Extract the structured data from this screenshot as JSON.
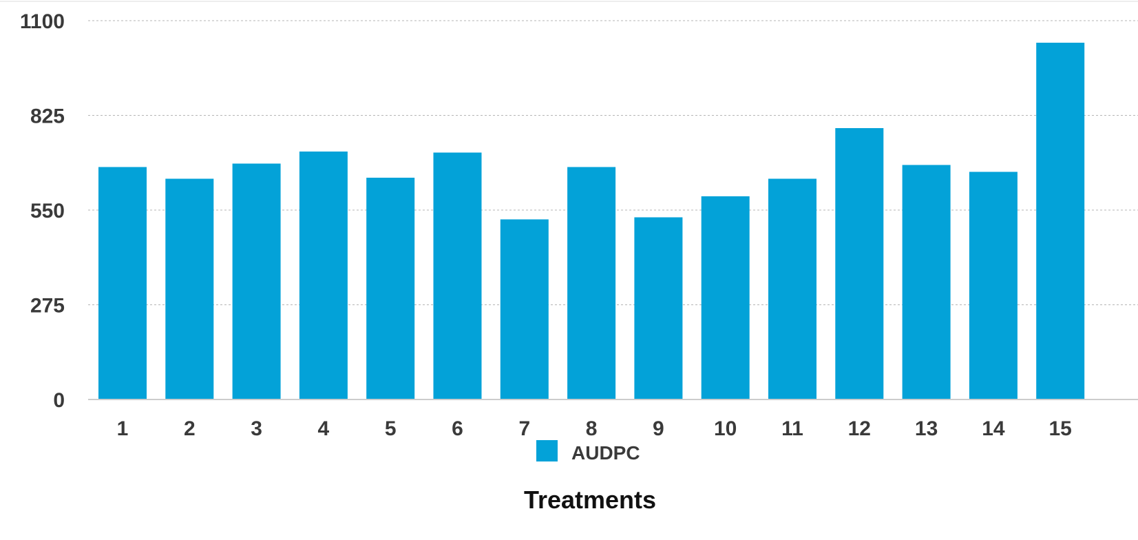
{
  "chart_data": {
    "type": "bar",
    "title": "",
    "xlabel": "Treatments",
    "ylabel": "",
    "categories": [
      "1",
      "2",
      "3",
      "4",
      "5",
      "6",
      "7",
      "8",
      "9",
      "10",
      "11",
      "12",
      "13",
      "14",
      "15"
    ],
    "series": [
      {
        "name": "AUDPC",
        "color": "#03A2D8",
        "values": [
          675,
          641,
          685,
          720,
          644,
          717,
          523,
          675,
          529,
          590,
          641,
          788,
          681,
          661,
          1036
        ]
      }
    ],
    "ylim": [
      0,
      1100
    ],
    "yticks": [
      "0",
      "275",
      "550",
      "825",
      "1100"
    ],
    "grid": true,
    "legend_position": "bottom-center",
    "colors": {
      "bar": "#03A2D8",
      "grid": "#b5b5b5",
      "axis": "#cccccc",
      "tick_text": "#3a3a3a",
      "title_text": "#111111"
    }
  }
}
